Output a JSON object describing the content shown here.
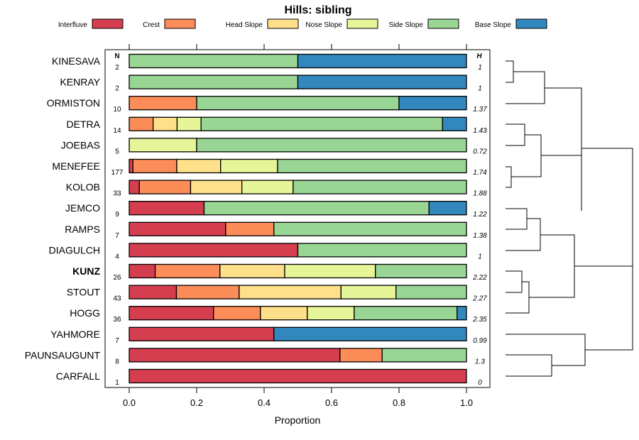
{
  "chart_data": {
    "type": "stacked-bar",
    "title": "Hills: sibling",
    "xlabel": "Proportion",
    "xlim": [
      0,
      1
    ],
    "ticks": [
      "0.0",
      "0.2",
      "0.4",
      "0.6",
      "0.8",
      "1.0"
    ],
    "tick_values": [
      0,
      0.2,
      0.4,
      0.6,
      0.8,
      1.0
    ],
    "n_header": "N",
    "h_header": "H",
    "legend": [
      {
        "name": "Interfluve",
        "color": "#d53e4f"
      },
      {
        "name": "Crest",
        "color": "#fc8d59"
      },
      {
        "name": "Head Slope",
        "color": "#fee08b"
      },
      {
        "name": "Nose Slope",
        "color": "#e6f598"
      },
      {
        "name": "Side Slope",
        "color": "#99d594"
      },
      {
        "name": "Base Slope",
        "color": "#3288bd"
      }
    ],
    "rows": [
      {
        "name": "KINESAVA",
        "n": "2",
        "h": "1",
        "bold": false,
        "values": [
          0,
          0,
          0,
          0,
          0.5,
          0.5
        ]
      },
      {
        "name": "KENRAY",
        "n": "2",
        "h": "1",
        "bold": false,
        "values": [
          0,
          0,
          0,
          0,
          0.5,
          0.5
        ]
      },
      {
        "name": "ORMISTON",
        "n": "10",
        "h": "1.37",
        "bold": false,
        "values": [
          0,
          0.2,
          0,
          0,
          0.6,
          0.2
        ]
      },
      {
        "name": "DETRA",
        "n": "14",
        "h": "1.43",
        "bold": false,
        "values": [
          0,
          0.071,
          0.071,
          0.071,
          0.716,
          0.071
        ]
      },
      {
        "name": "JOEBAS",
        "n": "5",
        "h": "0.72",
        "bold": false,
        "values": [
          0,
          0,
          0,
          0.2,
          0.8,
          0
        ]
      },
      {
        "name": "MENEFEE",
        "n": "177",
        "h": "1.74",
        "bold": false,
        "values": [
          0.011,
          0.13,
          0.13,
          0.169,
          0.56,
          0
        ]
      },
      {
        "name": "KOLOB",
        "n": "33",
        "h": "1.88",
        "bold": false,
        "values": [
          0.03,
          0.152,
          0.152,
          0.152,
          0.514,
          0
        ]
      },
      {
        "name": "JEMCO",
        "n": "9",
        "h": "1.22",
        "bold": false,
        "values": [
          0.222,
          0,
          0,
          0,
          0.667,
          0.111
        ]
      },
      {
        "name": "RAMPS",
        "n": "7",
        "h": "1.38",
        "bold": false,
        "values": [
          0.286,
          0.143,
          0,
          0,
          0.571,
          0
        ]
      },
      {
        "name": "DIAGULCH",
        "n": "4",
        "h": "1",
        "bold": false,
        "values": [
          0.5,
          0,
          0,
          0,
          0.5,
          0
        ]
      },
      {
        "name": "KUNZ",
        "n": "26",
        "h": "2.22",
        "bold": true,
        "values": [
          0.077,
          0.192,
          0.192,
          0.269,
          0.27,
          0
        ]
      },
      {
        "name": "STOUT",
        "n": "43",
        "h": "2.27",
        "bold": false,
        "values": [
          0.14,
          0.186,
          0.302,
          0.163,
          0.209,
          0
        ]
      },
      {
        "name": "HOGG",
        "n": "36",
        "h": "2.35",
        "bold": false,
        "values": [
          0.25,
          0.139,
          0.139,
          0.139,
          0.305,
          0.028
        ]
      },
      {
        "name": "YAHMORE",
        "n": "7",
        "h": "0.99",
        "bold": false,
        "values": [
          0.429,
          0,
          0,
          0,
          0,
          0.571
        ]
      },
      {
        "name": "PAUNSAUGUNT",
        "n": "8",
        "h": "1.3",
        "bold": false,
        "values": [
          0.625,
          0.125,
          0,
          0,
          0.25,
          0
        ]
      },
      {
        "name": "CARFALL",
        "n": "1",
        "h": "0",
        "bold": false,
        "values": [
          1,
          0,
          0,
          0,
          0,
          0
        ]
      }
    ]
  }
}
